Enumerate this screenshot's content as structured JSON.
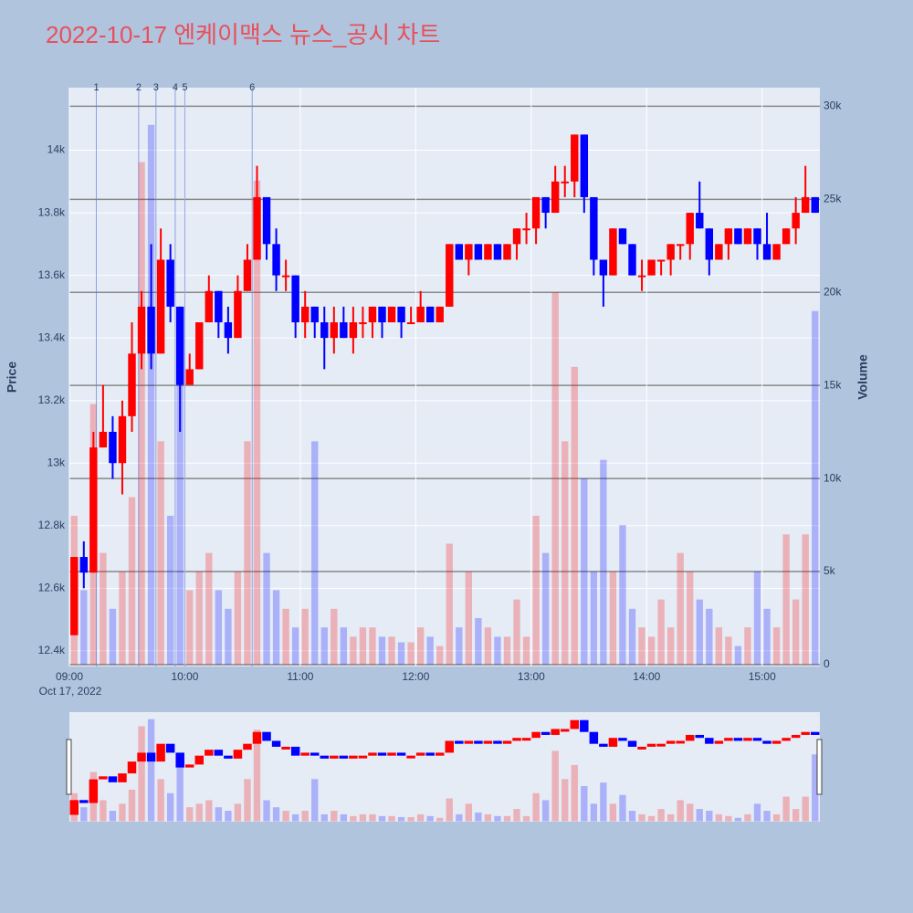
{
  "chart_data": {
    "type": "candlestick",
    "title": "2022-10-17 엔케이맥스 뉴스_공시 차트",
    "x": [
      "09:00",
      "09:05",
      "09:10",
      "09:15",
      "09:20",
      "09:25",
      "09:30",
      "09:35",
      "09:40",
      "09:45",
      "09:50",
      "09:55",
      "10:00",
      "10:05",
      "10:10",
      "10:15",
      "10:20",
      "10:25",
      "10:30",
      "10:35",
      "10:40",
      "10:45",
      "10:50",
      "10:55",
      "11:00",
      "11:05",
      "11:10",
      "11:15",
      "11:20",
      "11:25",
      "11:30",
      "11:35",
      "11:40",
      "11:45",
      "11:50",
      "11:55",
      "12:00",
      "12:05",
      "12:10",
      "12:15",
      "12:20",
      "12:25",
      "12:30",
      "12:35",
      "12:40",
      "12:45",
      "12:50",
      "12:55",
      "13:00",
      "13:05",
      "13:10",
      "13:15",
      "13:20",
      "13:25",
      "13:30",
      "13:35",
      "13:40",
      "13:45",
      "13:50",
      "13:55",
      "14:00",
      "14:05",
      "14:10",
      "14:15",
      "14:20",
      "14:25",
      "14:30",
      "14:35",
      "14:40",
      "14:45",
      "14:50",
      "14:55",
      "15:00",
      "15:05",
      "15:10",
      "15:15",
      "15:20",
      "15:25"
    ],
    "open": [
      12450,
      12700,
      12650,
      13050,
      13100,
      13000,
      13150,
      13350,
      13500,
      13350,
      13650,
      13500,
      13250,
      13300,
      13450,
      13550,
      13450,
      13400,
      13550,
      13650,
      13850,
      13700,
      13600,
      13600,
      13450,
      13500,
      13450,
      13400,
      13450,
      13400,
      13450,
      13450,
      13500,
      13450,
      13500,
      13450,
      13450,
      13500,
      13450,
      13500,
      13700,
      13650,
      13700,
      13650,
      13700,
      13650,
      13700,
      13750,
      13750,
      13850,
      13800,
      13900,
      13900,
      14050,
      13850,
      13650,
      13600,
      13750,
      13700,
      13600,
      13600,
      13650,
      13650,
      13700,
      13700,
      13800,
      13750,
      13650,
      13700,
      13750,
      13700,
      13750,
      13700,
      13650,
      13700,
      13750,
      13800,
      13850
    ],
    "high": [
      12700,
      12750,
      13100,
      13250,
      13150,
      13200,
      13450,
      13550,
      13700,
      13750,
      13700,
      13500,
      13350,
      13450,
      13600,
      13550,
      13500,
      13600,
      13700,
      13950,
      13850,
      13750,
      13650,
      13600,
      13550,
      13500,
      13500,
      13500,
      13500,
      13500,
      13500,
      13500,
      13500,
      13500,
      13500,
      13500,
      13550,
      13500,
      13500,
      13700,
      13700,
      13700,
      13700,
      13700,
      13700,
      13700,
      13750,
      13800,
      13850,
      13850,
      13950,
      13950,
      14050,
      14050,
      13850,
      13650,
      13750,
      13750,
      13700,
      13650,
      13650,
      13650,
      13700,
      13700,
      13800,
      13900,
      13750,
      13700,
      13750,
      13750,
      13750,
      13750,
      13800,
      13700,
      13750,
      13850,
      13950,
      13850
    ],
    "low": [
      12450,
      12600,
      12650,
      13050,
      12950,
      12900,
      13100,
      13300,
      13300,
      13350,
      13450,
      13100,
      13250,
      13300,
      13450,
      13400,
      13350,
      13400,
      13550,
      13650,
      13650,
      13550,
      13550,
      13400,
      13400,
      13400,
      13300,
      13350,
      13400,
      13350,
      13400,
      13400,
      13400,
      13450,
      13400,
      13450,
      13450,
      13450,
      13450,
      13500,
      13650,
      13600,
      13650,
      13650,
      13650,
      13650,
      13650,
      13700,
      13700,
      13750,
      13800,
      13850,
      13850,
      13800,
      13600,
      13500,
      13600,
      13700,
      13600,
      13550,
      13600,
      13600,
      13600,
      13650,
      13650,
      13750,
      13600,
      13650,
      13650,
      13700,
      13700,
      13650,
      13650,
      13650,
      13700,
      13700,
      13800,
      13800
    ],
    "close": [
      12700,
      12650,
      13050,
      13100,
      13000,
      13150,
      13350,
      13500,
      13350,
      13650,
      13500,
      13250,
      13300,
      13450,
      13550,
      13450,
      13400,
      13550,
      13650,
      13850,
      13700,
      13600,
      13600,
      13450,
      13500,
      13450,
      13400,
      13450,
      13400,
      13450,
      13450,
      13500,
      13450,
      13500,
      13450,
      13450,
      13500,
      13450,
      13500,
      13700,
      13650,
      13700,
      13650,
      13700,
      13650,
      13700,
      13750,
      13750,
      13850,
      13800,
      13900,
      13900,
      14050,
      13850,
      13650,
      13600,
      13750,
      13700,
      13600,
      13600,
      13650,
      13650,
      13700,
      13700,
      13800,
      13750,
      13650,
      13700,
      13750,
      13700,
      13750,
      13700,
      13650,
      13700,
      13750,
      13800,
      13850,
      13800
    ],
    "volume": [
      8000,
      4000,
      14000,
      6000,
      3000,
      5000,
      9000,
      27000,
      29000,
      12000,
      8000,
      16000,
      4000,
      5000,
      6000,
      4000,
      3000,
      5000,
      12000,
      26000,
      6000,
      4000,
      3000,
      2000,
      3000,
      12000,
      2000,
      3000,
      2000,
      1500,
      2000,
      2000,
      1500,
      1500,
      1200,
      1200,
      2000,
      1500,
      1000,
      6500,
      2000,
      5000,
      2500,
      2000,
      1500,
      1500,
      3500,
      1500,
      8000,
      6000,
      20000,
      12000,
      16000,
      10000,
      5000,
      11000,
      5000,
      7500,
      3000,
      2000,
      1500,
      3500,
      2000,
      6000,
      5000,
      3500,
      3000,
      2000,
      1500,
      1000,
      2000,
      5000,
      3000,
      2000,
      7000,
      3500,
      7000,
      19000
    ],
    "increasing_color": "#ff0000",
    "decreasing_color": "#0000ff",
    "xlim": [
      "09:00",
      "15:30"
    ],
    "xticks": [
      "09:00",
      "10:00",
      "11:00",
      "12:00",
      "13:00",
      "14:00",
      "15:00"
    ],
    "date_label": "Oct 17, 2022",
    "y_label": "Price",
    "ylim": [
      12350,
      14200
    ],
    "yticks": [
      {
        "value": 12400,
        "label": "12.4k"
      },
      {
        "value": 12600,
        "label": "12.6k"
      },
      {
        "value": 12800,
        "label": "12.8k"
      },
      {
        "value": 13000,
        "label": "13k"
      },
      {
        "value": 13200,
        "label": "13.2k"
      },
      {
        "value": 13400,
        "label": "13.4k"
      },
      {
        "value": 13600,
        "label": "13.6k"
      },
      {
        "value": 13800,
        "label": "13.8k"
      },
      {
        "value": 14000,
        "label": "14k"
      }
    ],
    "y2_label": "Volume",
    "y2lim": [
      -100,
      31000
    ],
    "y2ticks": [
      0,
      {
        "value": 5000,
        "label": "5k"
      },
      {
        "value": 10000,
        "label": "10k"
      },
      {
        "value": 15000,
        "label": "15k"
      },
      {
        "value": 20000,
        "label": "20k"
      },
      {
        "value": 25000,
        "label": "25k"
      },
      {
        "value": 30000,
        "label": "30k"
      }
    ],
    "news": [
      {
        "label": "1",
        "time": "09:14"
      },
      {
        "label": "2",
        "time": "09:36"
      },
      {
        "label": "3",
        "time": "09:45"
      },
      {
        "label": "4",
        "time": "09:55"
      },
      {
        "label": "5",
        "time": "10:00"
      },
      {
        "label": "6",
        "time": "10:35"
      }
    ],
    "rangeslider": true
  }
}
